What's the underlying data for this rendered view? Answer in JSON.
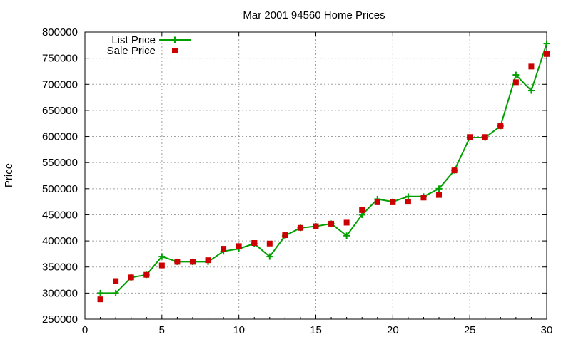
{
  "chart_data": {
    "type": "line",
    "title": "Mar 2001 94560 Home Prices",
    "xlabel": "",
    "ylabel": "Price",
    "xlim": [
      0,
      30
    ],
    "ylim": [
      250000,
      800000
    ],
    "xticks": [
      "0",
      "5",
      "10",
      "15",
      "20",
      "25",
      "30"
    ],
    "yticks": [
      "250000",
      "300000",
      "350000",
      "400000",
      "450000",
      "500000",
      "550000",
      "600000",
      "650000",
      "700000",
      "750000",
      "800000"
    ],
    "grid": true,
    "legend_position": "top-left",
    "x": [
      1,
      2,
      3,
      4,
      5,
      6,
      7,
      8,
      9,
      10,
      11,
      12,
      13,
      14,
      15,
      16,
      17,
      18,
      19,
      20,
      21,
      22,
      23,
      24,
      25,
      26,
      27,
      28,
      29,
      30
    ],
    "series": [
      {
        "name": "List Price",
        "style": "line-with-plus-markers",
        "color": "#00a000",
        "values": [
          300000,
          300000,
          330000,
          335000,
          370000,
          360000,
          360000,
          360000,
          380000,
          385000,
          395000,
          370000,
          410000,
          425000,
          428000,
          433000,
          410000,
          450000,
          480000,
          475000,
          485000,
          485000,
          500000,
          535000,
          598000,
          598000,
          620000,
          718000,
          688000,
          778000
        ]
      },
      {
        "name": "Sale Price",
        "style": "square-markers",
        "color": "#cc0000",
        "values": [
          288000,
          323000,
          330000,
          335000,
          353000,
          360000,
          360000,
          363000,
          385000,
          390000,
          396000,
          395000,
          411000,
          425000,
          428000,
          433000,
          435000,
          459000,
          474000,
          474000,
          475000,
          483000,
          488000,
          535000,
          599000,
          599000,
          620000,
          704000,
          734000,
          758000
        ]
      }
    ]
  }
}
